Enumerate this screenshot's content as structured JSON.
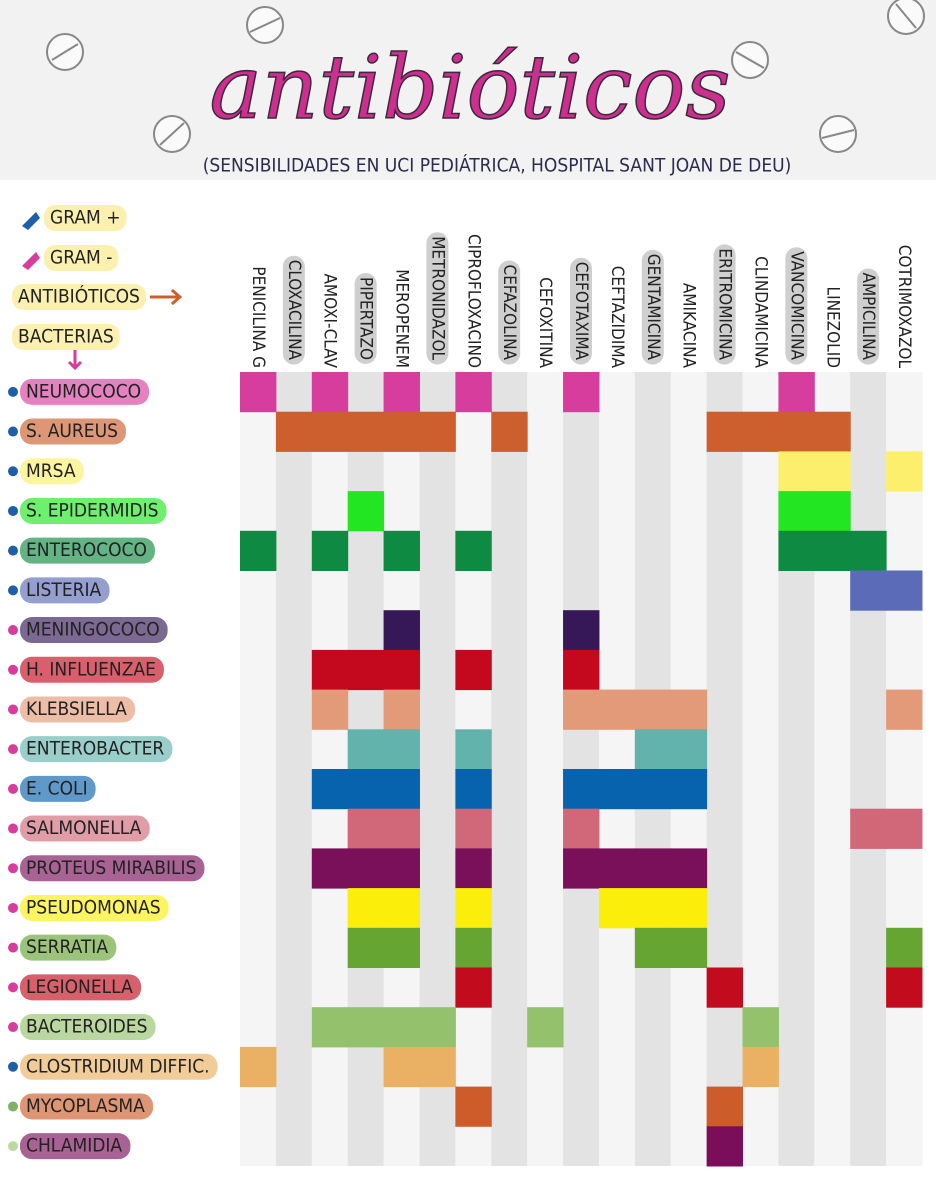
{
  "header": {
    "title": "antibióticos",
    "subtitle": "(SENSIBILIDADES EN UCI PEDIÁTRICA, HOSPITAL SANT JOAN DE DEU)"
  },
  "legend": {
    "gram_positive": {
      "label": "GRAM +",
      "color": "#1f5fa8"
    },
    "gram_negative": {
      "label": "GRAM -",
      "color": "#d63d9c"
    },
    "antibiotics": "ANTIBIÓTICOS",
    "bacteria": "BACTERIAS"
  },
  "antibiotics": [
    "PENICILINA G",
    "CLOXACILINA",
    "AMOXI-CLAV",
    "PIPERTAZO",
    "MEROPENEM",
    "METRONIDAZOL",
    "CIPROFLOXACINO",
    "CEFAZOLINA",
    "CEFOXITINA",
    "CEFOTAXIMA",
    "CEFTAZIDIMA",
    "GENTAMICINA",
    "AMIKACINA",
    "ERITROMICINA",
    "CLINDAMICINA",
    "VANCOMICINA",
    "LINEZOLID",
    "AMPICILINA",
    "COTRIMOXAZOL"
  ],
  "bacteria": [
    {
      "name": "NEUMOCOCO",
      "color": "#d63d9c",
      "dot": "#1f5fa8",
      "sensitive": [
        1,
        0,
        1,
        0,
        1,
        0,
        1,
        0,
        0,
        1,
        0,
        0,
        0,
        0,
        0,
        1,
        0,
        0,
        0
      ]
    },
    {
      "name": "S. AUREUS",
      "color": "#cc5f2d",
      "dot": "#1f5fa8",
      "sensitive": [
        0,
        1,
        1,
        1,
        1,
        1,
        0,
        1,
        0,
        0,
        0,
        0,
        0,
        1,
        1,
        1,
        1,
        0,
        0
      ]
    },
    {
      "name": "MRSA",
      "color": "#fbef6c",
      "dot": "#1f5fa8",
      "sensitive": [
        0,
        0,
        0,
        0,
        0,
        0,
        0,
        0,
        0,
        0,
        0,
        0,
        0,
        0,
        0,
        1,
        1,
        0,
        1
      ]
    },
    {
      "name": "S. EPIDERMIDIS",
      "color": "#22e622",
      "dot": "#1f5fa8",
      "sensitive": [
        0,
        0,
        0,
        1,
        0,
        0,
        0,
        0,
        0,
        0,
        0,
        0,
        0,
        0,
        0,
        1,
        1,
        0,
        0
      ]
    },
    {
      "name": "ENTEROCOCO",
      "color": "#0f8a42",
      "dot": "#1f5fa8",
      "sensitive": [
        1,
        0,
        1,
        0,
        1,
        0,
        1,
        0,
        0,
        0,
        0,
        0,
        0,
        0,
        0,
        1,
        1,
        1,
        0
      ]
    },
    {
      "name": "LISTERIA",
      "color": "#5b6bb7",
      "dot": "#1f5fa8",
      "sensitive": [
        0,
        0,
        0,
        0,
        0,
        0,
        0,
        0,
        0,
        0,
        0,
        0,
        0,
        0,
        0,
        0,
        0,
        1,
        1
      ]
    },
    {
      "name": "MENINGOCOCO",
      "color": "#361858",
      "dot": "#d63d9c",
      "sensitive": [
        0,
        0,
        0,
        0,
        1,
        0,
        0,
        0,
        0,
        1,
        0,
        0,
        0,
        0,
        0,
        0,
        0,
        0,
        0
      ]
    },
    {
      "name": "H. INFLUENZAE",
      "color": "#c4091e",
      "dot": "#d63d9c",
      "sensitive": [
        0,
        0,
        1,
        1,
        1,
        0,
        1,
        0,
        0,
        1,
        0,
        0,
        0,
        0,
        0,
        0,
        0,
        0,
        0
      ]
    },
    {
      "name": "KLEBSIELLA",
      "color": "#e39a78",
      "dot": "#d63d9c",
      "sensitive": [
        0,
        0,
        1,
        0,
        1,
        0,
        0,
        0,
        0,
        1,
        1,
        1,
        1,
        0,
        0,
        0,
        0,
        0,
        1
      ]
    },
    {
      "name": "ENTEROBACTER",
      "color": "#63b3ad",
      "dot": "#d63d9c",
      "sensitive": [
        0,
        0,
        0,
        1,
        1,
        0,
        1,
        0,
        0,
        0,
        0,
        1,
        1,
        0,
        0,
        0,
        0,
        0,
        0
      ]
    },
    {
      "name": "E. COLI",
      "color": "#0863ae",
      "dot": "#d63d9c",
      "sensitive": [
        0,
        0,
        1,
        1,
        1,
        0,
        1,
        0,
        0,
        1,
        1,
        1,
        1,
        0,
        0,
        0,
        0,
        0,
        0
      ]
    },
    {
      "name": "SALMONELLA",
      "color": "#d0687a",
      "dot": "#d63d9c",
      "sensitive": [
        0,
        0,
        0,
        1,
        1,
        0,
        1,
        0,
        0,
        1,
        0,
        0,
        0,
        0,
        0,
        0,
        0,
        1,
        1
      ]
    },
    {
      "name": "PROTEUS MIRABILIS",
      "color": "#7a0f5a",
      "dot": "#d63d9c",
      "sensitive": [
        0,
        0,
        1,
        1,
        1,
        0,
        1,
        0,
        0,
        1,
        1,
        1,
        1,
        0,
        0,
        0,
        0,
        0,
        0
      ]
    },
    {
      "name": "PSEUDOMONAS",
      "color": "#fbee0a",
      "dot": "#d63d9c",
      "sensitive": [
        0,
        0,
        0,
        1,
        1,
        0,
        1,
        0,
        0,
        0,
        1,
        1,
        1,
        0,
        0,
        0,
        0,
        0,
        0
      ]
    },
    {
      "name": "SERRATIA",
      "color": "#66a532",
      "dot": "#d63d9c",
      "sensitive": [
        0,
        0,
        0,
        1,
        1,
        0,
        1,
        0,
        0,
        0,
        0,
        1,
        1,
        0,
        0,
        0,
        0,
        0,
        1
      ]
    },
    {
      "name": "LEGIONELLA",
      "color": "#c20b1c",
      "dot": "#d63d9c",
      "sensitive": [
        0,
        0,
        0,
        0,
        0,
        0,
        1,
        0,
        0,
        0,
        0,
        0,
        0,
        1,
        0,
        0,
        0,
        0,
        1
      ]
    },
    {
      "name": "BACTEROIDES",
      "color": "#94c16c",
      "dot": "#d63d9c",
      "sensitive": [
        0,
        0,
        1,
        1,
        1,
        1,
        0,
        0,
        1,
        0,
        0,
        0,
        0,
        0,
        1,
        0,
        0,
        0,
        0
      ]
    },
    {
      "name": "CLOSTRIDIUM DIFFIC.",
      "color": "#eab063",
      "dot": "#1f5fa8",
      "sensitive": [
        1,
        0,
        0,
        0,
        1,
        1,
        0,
        0,
        0,
        0,
        0,
        0,
        0,
        0,
        1,
        0,
        0,
        0,
        0
      ]
    },
    {
      "name": "MYCOPLASMA",
      "color": "#cd5c2a",
      "dot": "#7fb069",
      "sensitive": [
        0,
        0,
        0,
        0,
        0,
        0,
        1,
        0,
        0,
        0,
        0,
        0,
        0,
        1,
        0,
        0,
        0,
        0,
        0
      ]
    },
    {
      "name": "CHLAMIDIA",
      "color": "#7a0e5a",
      "dot": "#b8dca0",
      "sensitive": [
        0,
        0,
        0,
        0,
        0,
        0,
        0,
        0,
        0,
        0,
        0,
        0,
        0,
        1,
        0,
        0,
        0,
        0,
        0
      ]
    }
  ]
}
